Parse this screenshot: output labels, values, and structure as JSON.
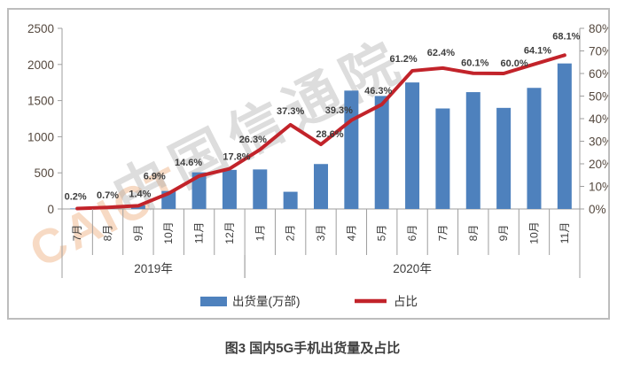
{
  "figure": {
    "caption": "图3  国内5G手机出货量及占比"
  },
  "watermark": {
    "text_cn": "中国信通院",
    "text_en": "CAICT"
  },
  "chart_data": {
    "type": "bar+line",
    "categories": [
      "7月",
      "8月",
      "9月",
      "10月",
      "11月",
      "12月",
      "1月",
      "2月",
      "3月",
      "4月",
      "5月",
      "6月",
      "7月",
      "8月",
      "9月",
      "10月",
      "11月"
    ],
    "year_groups": [
      {
        "label": "2019年",
        "from": 0,
        "to": 5
      },
      {
        "label": "2020年",
        "from": 6,
        "to": 16
      }
    ],
    "series": [
      {
        "name": "出货量(万部)",
        "type": "bar",
        "axis": "left",
        "color": "#4e81bd",
        "values": [
          7,
          22,
          50,
          249,
          507,
          541,
          547,
          238,
          622,
          1638,
          1564,
          1751,
          1391,
          1617,
          1399,
          1676,
          2014
        ]
      },
      {
        "name": "占比",
        "type": "line",
        "axis": "right",
        "color": "#c2232a",
        "values": [
          0.2,
          0.7,
          1.4,
          6.9,
          14.6,
          17.8,
          26.3,
          37.3,
          28.6,
          39.3,
          46.3,
          61.2,
          62.4,
          60.1,
          60.0,
          64.1,
          68.1
        ],
        "labels": [
          "0.2%",
          "0.7%",
          "1.4%",
          "6.9%",
          "14.6%",
          "17.8%",
          "26.3%",
          "37.3%",
          "28.6%",
          "39.3%",
          "46.3%",
          "61.2%",
          "62.4%",
          "60.1%",
          "60.0%",
          "64.1%",
          "68.1%"
        ]
      }
    ],
    "left_axis": {
      "min": 0,
      "max": 2500,
      "step": 500,
      "ticks": [
        "2500",
        "2000",
        "1500",
        "1000",
        "500",
        "0"
      ]
    },
    "right_axis": {
      "min": 0,
      "max": 80,
      "step": 10,
      "ticks": [
        "80%",
        "70%",
        "60%",
        "50%",
        "40%",
        "30%",
        "20%",
        "10%",
        "0%"
      ]
    },
    "legend_position": "bottom",
    "grid": false
  },
  "colors": {
    "axis_line": "#9e9e9e",
    "tick_text": "#55493f",
    "data_label": "#3d3d3d",
    "category_text": "#3d3d3d",
    "legend_text": "#333333"
  }
}
